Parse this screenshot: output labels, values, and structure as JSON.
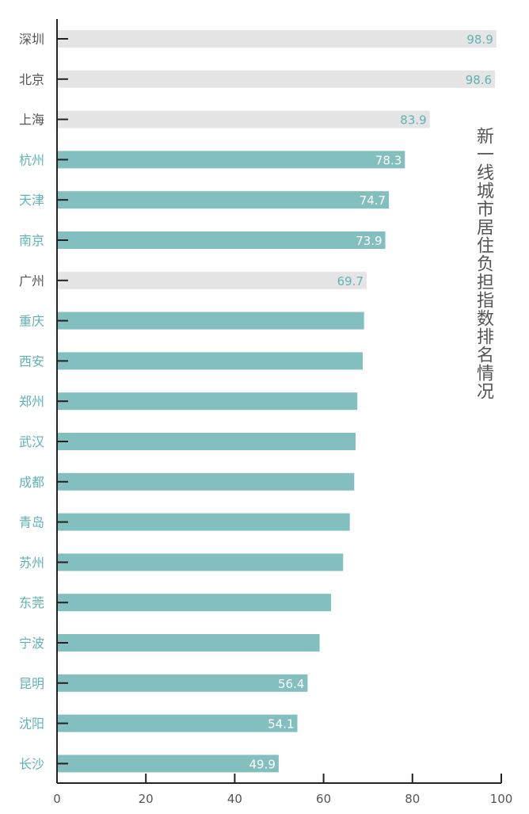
{
  "chart_data": {
    "type": "bar",
    "orientation": "horizontal",
    "title": "新一线城市居住负担指数排名情况",
    "categories": [
      "深圳",
      "北京",
      "上海",
      "杭州",
      "天津",
      "南京",
      "广州",
      "重庆",
      "西安",
      "郑州",
      "武汉",
      "成都",
      "青岛",
      "苏州",
      "东莞",
      "宁波",
      "昆明",
      "沈阳",
      "长沙"
    ],
    "values": [
      98.9,
      98.6,
      83.9,
      78.3,
      74.7,
      73.9,
      69.7,
      69.1,
      68.8,
      67.6,
      67.2,
      66.9,
      65.9,
      64.4,
      61.7,
      59.1,
      56.4,
      54.1,
      49.9
    ],
    "value_labels": [
      "98.9",
      "98.6",
      "83.9",
      "78.3",
      "74.7",
      "73.9",
      "69.7",
      "",
      "",
      "",
      "",
      "",
      "",
      "",
      "",
      "",
      "56.4",
      "54.1",
      "49.9"
    ],
    "highlight": [
      true,
      true,
      true,
      false,
      false,
      false,
      true,
      false,
      false,
      false,
      false,
      false,
      false,
      false,
      false,
      false,
      false,
      false,
      false
    ],
    "xlim": [
      0,
      100
    ],
    "xticks": [
      "0",
      "20",
      "40",
      "60",
      "80",
      "100"
    ],
    "grid": false,
    "colors": {
      "bar": "#84bfc0",
      "bar_highlight": "#e5e5e5",
      "label_on_bar": "#ffffff",
      "label_on_highlight": "#5fb3b3",
      "category_teal": "#5fb3b3",
      "category_gray": "#555555",
      "axis": "#222222",
      "title": "#555555"
    }
  }
}
